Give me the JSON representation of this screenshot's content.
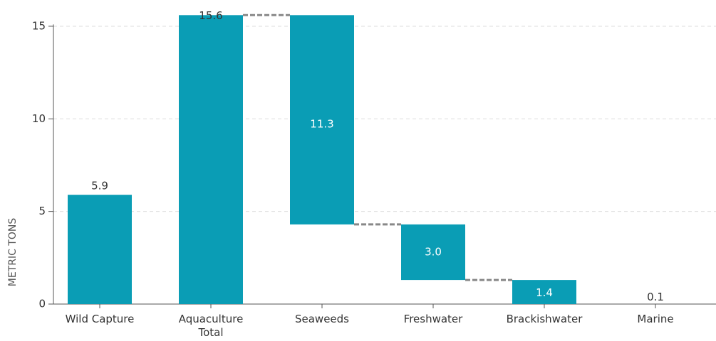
{
  "chart_data": {
    "type": "waterfall",
    "y_label": "METRIC TONS",
    "categories": [
      "Wild Capture",
      "Aquaculture Total",
      "Seaweeds",
      "Freshwater",
      "Brackishwater",
      "Marine"
    ],
    "values": [
      5.9,
      15.6,
      11.3,
      3.0,
      1.4,
      0.1
    ],
    "value_labels": [
      "5.9",
      "15.6",
      "11.3",
      "3.0",
      "1.4",
      "0.1"
    ],
    "measures": [
      "absolute",
      "absolute",
      "relative",
      "relative",
      "relative",
      "relative"
    ],
    "color": "#0a9db5",
    "connector_color": "#888888",
    "ylim": [
      0,
      15.1
    ],
    "yticks": [
      0,
      5,
      10,
      15
    ],
    "grid": true
  }
}
